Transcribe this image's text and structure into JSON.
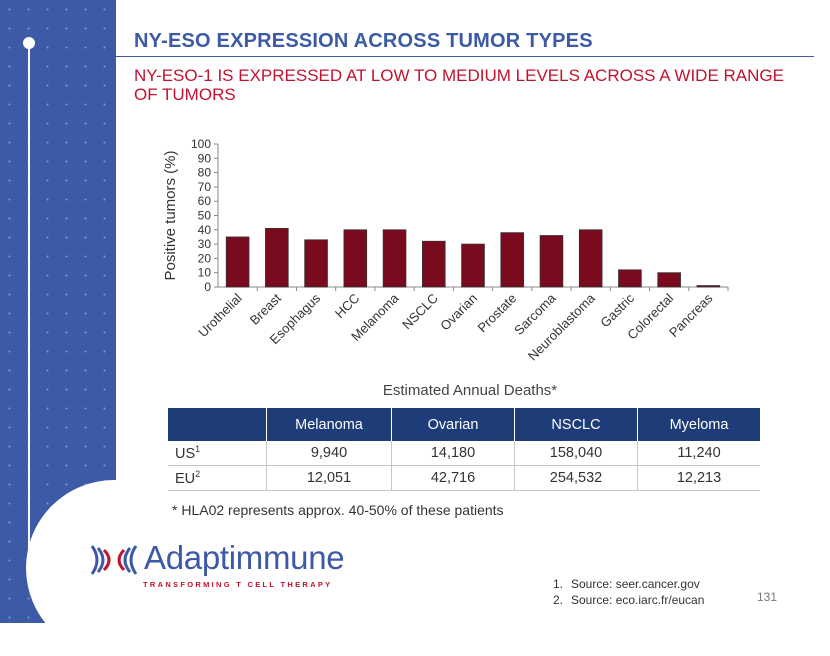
{
  "slide": {
    "title": "NY-ESO EXPRESSION ACROSS TUMOR TYPES",
    "subtitle": "NY-ESO-1 IS EXPRESSED AT LOW TO MEDIUM LEVELS ACROSS A WIDE RANGE OF TUMORS",
    "page_number": "131"
  },
  "chart_data": {
    "type": "bar",
    "categories": [
      "Urothelial",
      "Breast",
      "Esophagus",
      "HCC",
      "Melanoma",
      "NSCLC",
      "Ovarian",
      "Prostate",
      "Sarcoma",
      "Neuroblastoma",
      "Gastric",
      "Colorectal",
      "Pancreas"
    ],
    "values": [
      35,
      41,
      33,
      40,
      40,
      32,
      30,
      38,
      36,
      40,
      12,
      10,
      1
    ],
    "ylabel": "Positive tumors (%)",
    "ylim": [
      0,
      100
    ],
    "yticks": [
      0,
      10,
      20,
      30,
      40,
      50,
      60,
      70,
      80,
      90,
      100
    ],
    "bar_color": "#7a0b1f",
    "grid": false
  },
  "deaths_table": {
    "title": "Estimated Annual Deaths*",
    "header": [
      "",
      "Melanoma",
      "Ovarian",
      "NSCLC",
      "Myeloma"
    ],
    "rows": [
      {
        "label": "US",
        "sup": "1",
        "values": [
          "9,940",
          "14,180",
          "158,040",
          "11,240"
        ]
      },
      {
        "label": "EU",
        "sup": "2",
        "values": [
          "12,051",
          "42,716",
          "254,532",
          "12,213"
        ]
      }
    ]
  },
  "footnote": "* HLA02 represents approx. 40-50% of these patients",
  "sources": [
    "Source: seer.cancer.gov",
    "Source: eco.iarc.fr/eucan"
  ],
  "logo": {
    "name": "Adaptimmune",
    "tagline": "TRANSFORMING T CELL THERAPY"
  },
  "colors": {
    "brand_blue": "#3d5aa7",
    "accent_red": "#c1122f",
    "table_header": "#1e3c78"
  }
}
